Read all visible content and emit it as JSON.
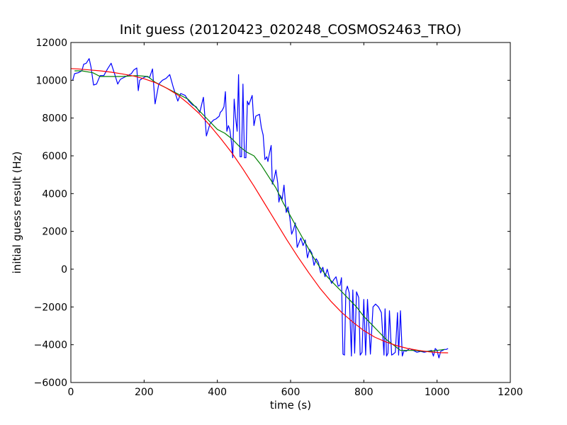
{
  "chart_data": {
    "type": "line",
    "title": "Init guess (20120423_020248_COSMOS2463_TRO)",
    "xlabel": "time (s)",
    "ylabel": "initial guess result (Hz)",
    "xlim": [
      0,
      1200
    ],
    "ylim": [
      -6000,
      12000
    ],
    "xticks": [
      0,
      200,
      400,
      600,
      800,
      1000,
      1200
    ],
    "yticks": [
      -6000,
      -4000,
      -2000,
      0,
      2000,
      4000,
      6000,
      8000,
      10000,
      12000
    ],
    "grid": false,
    "legend": "none",
    "series": [
      {
        "color": "#0000ff",
        "x": [
          5,
          10,
          20,
          30,
          35,
          42,
          50,
          55,
          62,
          70,
          80,
          90,
          100,
          110,
          120,
          128,
          135,
          150,
          165,
          172,
          180,
          184,
          188,
          195,
          205,
          215,
          223,
          230,
          240,
          250,
          260,
          270,
          280,
          292,
          300,
          312,
          322,
          332,
          342,
          352,
          362,
          370,
          380,
          390,
          396,
          405,
          408,
          413,
          418,
          422,
          426,
          430,
          434,
          438,
          442,
          446,
          450,
          454,
          458,
          462,
          466,
          470,
          474,
          478,
          482,
          486,
          495,
          500,
          505,
          515,
          520,
          525,
          530,
          535,
          538,
          542,
          547,
          550,
          555,
          560,
          565,
          568,
          572,
          577,
          582,
          588,
          593,
          598,
          603,
          608,
          613,
          618,
          624,
          628,
          634,
          640,
          646,
          652,
          658,
          664,
          670,
          676,
          682,
          688,
          694,
          700,
          706,
          712,
          718,
          724,
          730,
          735,
          739,
          743,
          747,
          751,
          755,
          760,
          766,
          770,
          775,
          780,
          786,
          790,
          795,
          800,
          805,
          810,
          818,
          825,
          832,
          840,
          848,
          855,
          858,
          862,
          866,
          870,
          876,
          880,
          886,
          892,
          895,
          900,
          905,
          910,
          915,
          925,
          935,
          945,
          955,
          965,
          975,
          985,
          990,
          995,
          1000,
          1005,
          1010,
          1015,
          1020,
          1025,
          1030
        ],
        "y": [
          10000,
          10350,
          10400,
          10500,
          10850,
          10900,
          11150,
          10700,
          9750,
          9800,
          10250,
          10250,
          10600,
          10900,
          10300,
          9800,
          10050,
          10200,
          10350,
          10550,
          10650,
          9450,
          10000,
          10100,
          10200,
          10150,
          10600,
          8750,
          9800,
          10000,
          10100,
          10300,
          9600,
          8900,
          9300,
          9200,
          8900,
          8700,
          8600,
          8300,
          9100,
          7050,
          7700,
          7900,
          7950,
          8100,
          8300,
          8400,
          8600,
          9400,
          7300,
          7600,
          7400,
          6800,
          5900,
          9000,
          8000,
          7300,
          10300,
          5950,
          5950,
          9800,
          5900,
          5900,
          8900,
          8700,
          9200,
          7600,
          8100,
          8200,
          7500,
          7100,
          5800,
          5950,
          5700,
          6100,
          6550,
          4500,
          4800,
          5250,
          4550,
          3550,
          3900,
          3700,
          4450,
          3000,
          3300,
          2700,
          1850,
          2100,
          2450,
          1150,
          1450,
          1650,
          1250,
          1550,
          600,
          1050,
          850,
          200,
          550,
          350,
          -200,
          100,
          -400,
          0,
          -450,
          -750,
          -550,
          -400,
          -900,
          -850,
          -450,
          -4500,
          -4550,
          -1150,
          -900,
          -1250,
          -4600,
          -1100,
          -4450,
          -1200,
          -1500,
          -4550,
          -4400,
          -1600,
          -4550,
          -1600,
          -4500,
          -2000,
          -1850,
          -2000,
          -2300,
          -4550,
          -2100,
          -4600,
          -4450,
          -2200,
          -4550,
          -4500,
          -4400,
          -2300,
          -4550,
          -2200,
          -4600,
          -4300,
          -4350,
          -4200,
          -4300,
          -4400,
          -4350,
          -4400,
          -4350,
          -4300,
          -4600,
          -4200,
          -4300,
          -4700,
          -4350,
          -4300,
          -4250,
          -4250,
          -4200
        ],
        "values_note": ""
      },
      {
        "color": "#008000",
        "x": [
          10,
          30,
          60,
          80,
          100,
          140,
          180,
          210,
          230,
          260,
          290,
          320,
          350,
          380,
          400,
          420,
          440,
          460,
          480,
          500,
          520,
          540,
          560,
          580,
          600,
          620,
          640,
          660,
          680,
          700,
          720,
          740,
          760,
          780,
          800,
          820,
          840,
          860,
          880,
          900,
          920,
          940,
          960,
          980,
          1000,
          1020
        ],
        "y": [
          10500,
          10500,
          10400,
          10200,
          10200,
          10200,
          10250,
          10200,
          9900,
          9600,
          9300,
          9000,
          8400,
          7800,
          7400,
          7200,
          6900,
          6500,
          6200,
          6000,
          5500,
          4900,
          4300,
          3500,
          2800,
          2100,
          1400,
          700,
          100,
          -400,
          -800,
          -1200,
          -1600,
          -2000,
          -2500,
          -2900,
          -3300,
          -3700,
          -4000,
          -4300,
          -4300,
          -4300,
          -4350,
          -4350,
          -4300,
          -4250
        ]
      },
      {
        "color": "#ff0000",
        "x": [
          0,
          20,
          50,
          80,
          110,
          140,
          170,
          200,
          230,
          260,
          290,
          320,
          350,
          380,
          410,
          440,
          470,
          500,
          530,
          560,
          590,
          620,
          650,
          680,
          710,
          740,
          770,
          800,
          830,
          860,
          890,
          920,
          950,
          980,
          1010,
          1030
        ],
        "y": [
          10620,
          10600,
          10550,
          10500,
          10430,
          10340,
          10230,
          10080,
          9880,
          9600,
          9250,
          8780,
          8250,
          7600,
          6900,
          6150,
          5300,
          4400,
          3450,
          2500,
          1550,
          650,
          -200,
          -1000,
          -1700,
          -2300,
          -2800,
          -3250,
          -3600,
          -3850,
          -4050,
          -4200,
          -4300,
          -4380,
          -4420,
          -4430
        ]
      }
    ]
  }
}
